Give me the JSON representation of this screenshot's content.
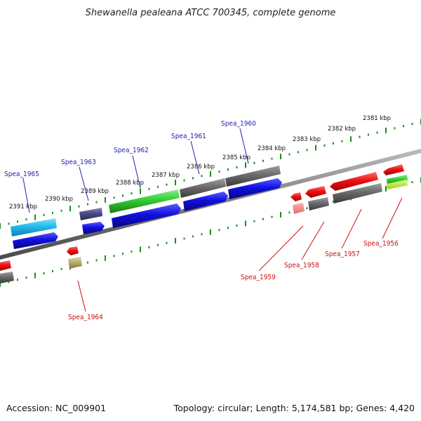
{
  "title": "Shewanella pealeana ATCC 700345, complete genome",
  "footer": {
    "accession": "Accession: NC_009901",
    "summary": "Topology: circular; Length: 5,174,581 bp; Genes: 4,420"
  },
  "colors": {
    "backbone": "#7a7a7a",
    "dots": "#1e8c1e",
    "forward_label": "#1f1fb0",
    "reverse_label": "#cc1111",
    "blue": "#1010e0",
    "gray": "#6a6a6a",
    "red": "#ee1111",
    "green": "#33cc33",
    "cyan": "#22bbee",
    "purple": "#4a4a8a",
    "olive": "#b8b070",
    "lime": "#bbee22"
  },
  "kbp_labels": [
    {
      "text": "2381 kbp"
    },
    {
      "text": "2382 kbp"
    },
    {
      "text": "2383 kbp"
    },
    {
      "text": "2384 kbp"
    },
    {
      "text": "2385 kbp"
    },
    {
      "text": "2386 kbp"
    },
    {
      "text": "2387 kbp"
    },
    {
      "text": "2388 kbp"
    },
    {
      "text": "2389 kbp"
    },
    {
      "text": "2390 kbp"
    },
    {
      "text": "2391 kbp"
    }
  ],
  "gene_labels": {
    "forward": [
      "Spea_1960",
      "Spea_1961",
      "Spea_1962",
      "Spea_1963",
      "Spea_1965"
    ],
    "reverse": [
      "Spea_1956",
      "Spea_1957",
      "Spea_1958",
      "Spea_1959",
      "Spea_1964"
    ]
  }
}
